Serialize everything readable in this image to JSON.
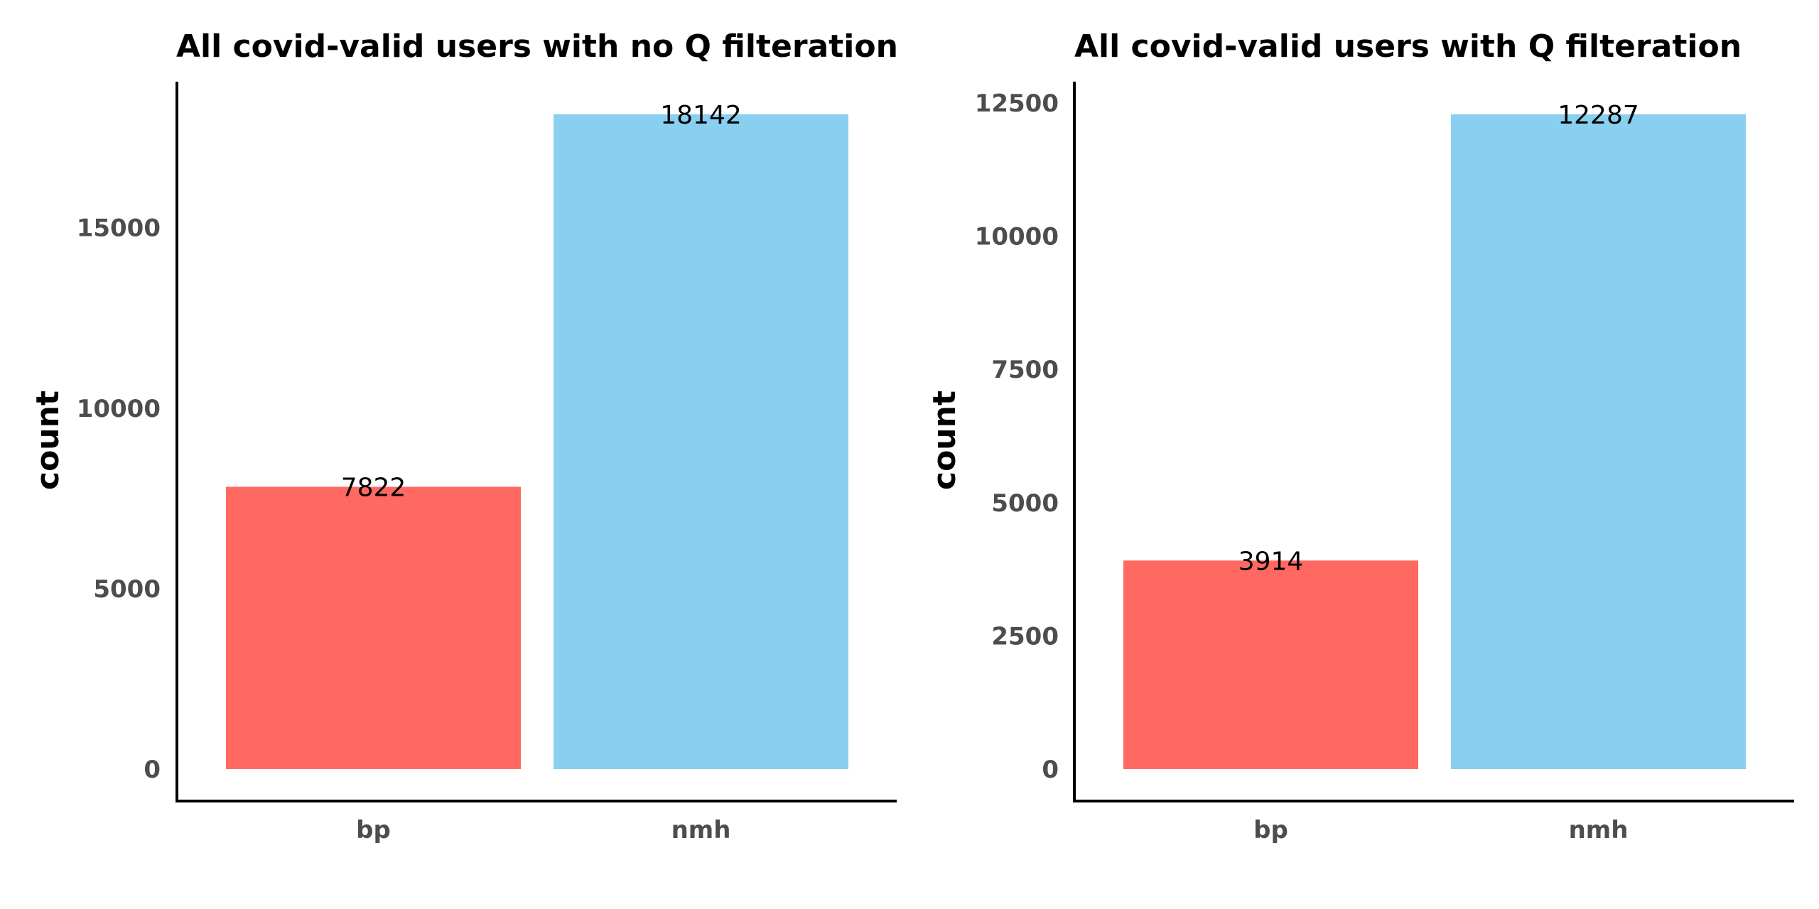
{
  "chart_data": [
    {
      "type": "bar",
      "title": "All covid-valid users with no Q filteration",
      "xlabel": "",
      "ylabel": "count",
      "categories": [
        "bp",
        "nmh"
      ],
      "values": [
        7822,
        18142
      ],
      "data_labels": [
        "7822",
        "18142"
      ],
      "colors": [
        "#ff6961",
        "#89cff0"
      ],
      "yticks": [
        0,
        5000,
        10000,
        15000
      ],
      "ytick_labels": [
        "0",
        "5000",
        "10000",
        "15000"
      ],
      "ylim": [
        0,
        18142
      ],
      "grid": false,
      "legend": "none"
    },
    {
      "type": "bar",
      "title": "All covid-valid users with Q filteration",
      "xlabel": "",
      "ylabel": "count",
      "categories": [
        "bp",
        "nmh"
      ],
      "values": [
        3914,
        12287
      ],
      "data_labels": [
        "3914",
        "12287"
      ],
      "colors": [
        "#ff6961",
        "#89cff0"
      ],
      "yticks": [
        0,
        2500,
        5000,
        7500,
        10000,
        12500
      ],
      "ytick_labels": [
        "0",
        "2500",
        "5000",
        "7500",
        "10000",
        "12500"
      ],
      "ylim": [
        0,
        12287
      ],
      "grid": false,
      "legend": "none"
    }
  ]
}
